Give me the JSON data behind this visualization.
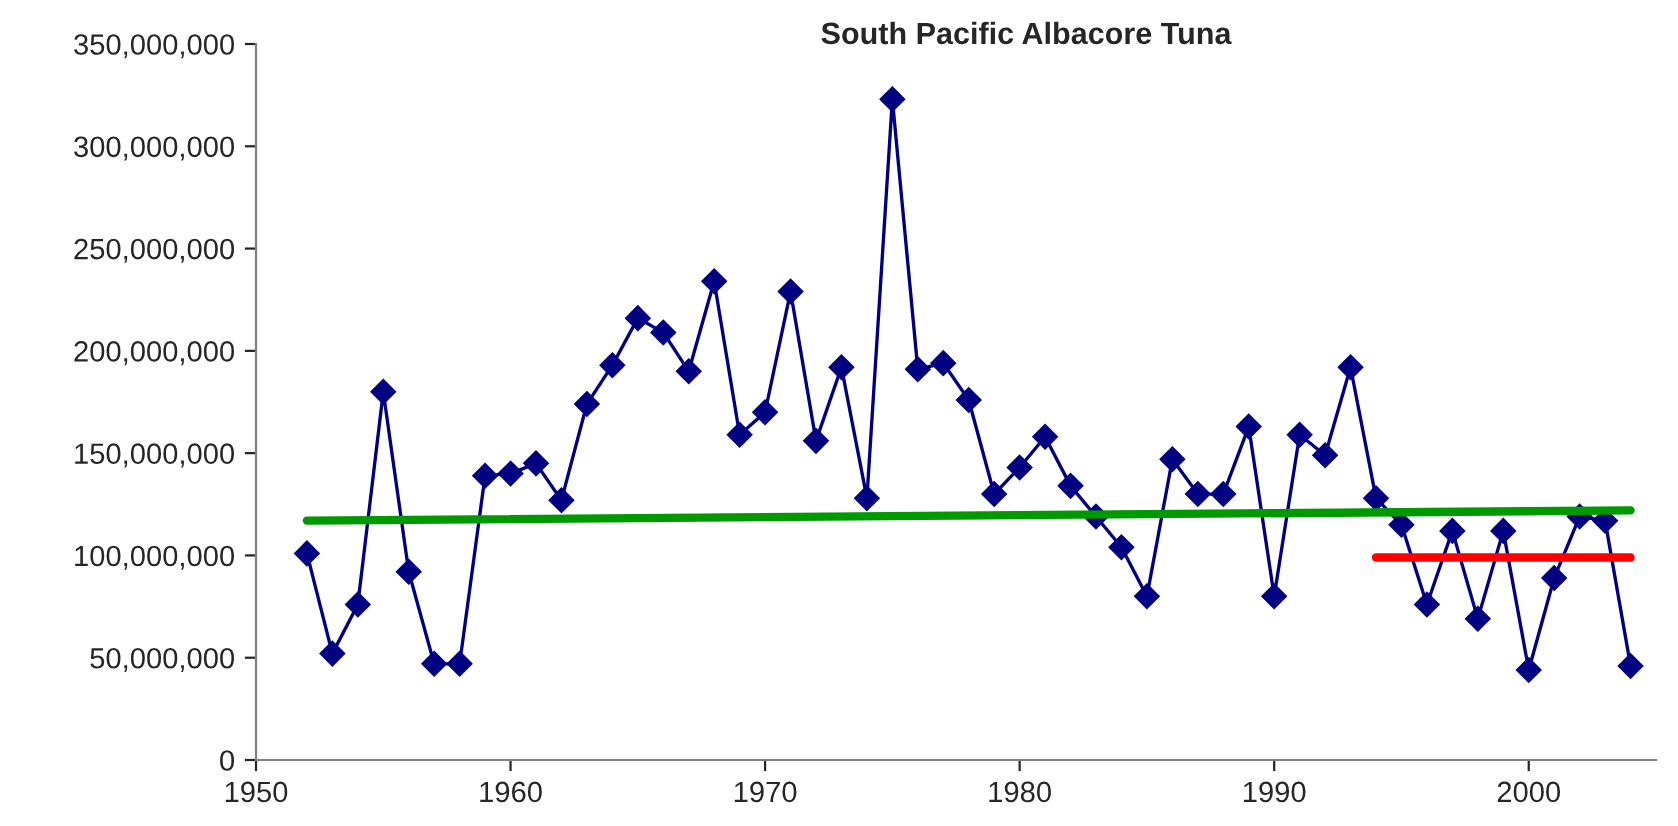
{
  "chart_data": {
    "type": "line",
    "title": "South Pacific Albacore Tuna",
    "x": [
      1952,
      1953,
      1954,
      1955,
      1956,
      1957,
      1958,
      1959,
      1960,
      1961,
      1962,
      1963,
      1964,
      1965,
      1966,
      1967,
      1968,
      1969,
      1970,
      1971,
      1972,
      1973,
      1974,
      1975,
      1976,
      1977,
      1978,
      1979,
      1980,
      1981,
      1982,
      1983,
      1984,
      1985,
      1986,
      1987,
      1988,
      1989,
      1990,
      1991,
      1992,
      1993,
      1994,
      1995,
      1996,
      1997,
      1998,
      1999,
      2000,
      2001,
      2002,
      2003,
      2004
    ],
    "series": [
      {
        "color": "#000080",
        "marker": "diamond",
        "values": [
          101000000,
          52000000,
          76000000,
          180000000,
          92000000,
          47000000,
          47000000,
          139000000,
          140000000,
          145000000,
          127000000,
          174000000,
          193000000,
          216000000,
          209000000,
          190000000,
          234000000,
          159000000,
          170000000,
          229000000,
          156000000,
          192000000,
          128000000,
          323000000,
          191000000,
          194000000,
          176000000,
          130000000,
          143000000,
          158000000,
          134000000,
          119000000,
          104000000,
          80000000,
          147000000,
          130000000,
          130000000,
          163000000,
          80000000,
          159000000,
          149000000,
          192000000,
          128000000,
          115000000,
          76000000,
          112000000,
          69000000,
          112000000,
          44000000,
          89000000,
          119000000,
          117000000,
          46000000
        ]
      },
      {
        "type": "line",
        "color": "#009900",
        "marker": "none",
        "x": [
          1952,
          2004
        ],
        "values": [
          117000000,
          122000000
        ]
      },
      {
        "type": "line",
        "color": "#ff0000",
        "marker": "none",
        "x": [
          1994,
          2004
        ],
        "values": [
          99000000,
          99000000
        ]
      }
    ],
    "xlim": [
      1950,
      2005
    ],
    "xticks": [
      1950,
      1960,
      1970,
      1980,
      1990,
      2000
    ],
    "ylim": [
      0,
      350000000
    ],
    "yticks": [
      {
        "value": 0,
        "label": "0"
      },
      {
        "value": 50000000,
        "label": "50,000,000"
      },
      {
        "value": 100000000,
        "label": "100,000,000"
      },
      {
        "value": 150000000,
        "label": "150,000,000"
      },
      {
        "value": 200000000,
        "label": "200,000,000"
      },
      {
        "value": 250000000,
        "label": "250,000,000"
      },
      {
        "value": 300000000,
        "label": "300,000,000"
      },
      {
        "value": 350000000,
        "label": "350,000,000"
      }
    ],
    "grid": false,
    "line_style": "solid"
  }
}
